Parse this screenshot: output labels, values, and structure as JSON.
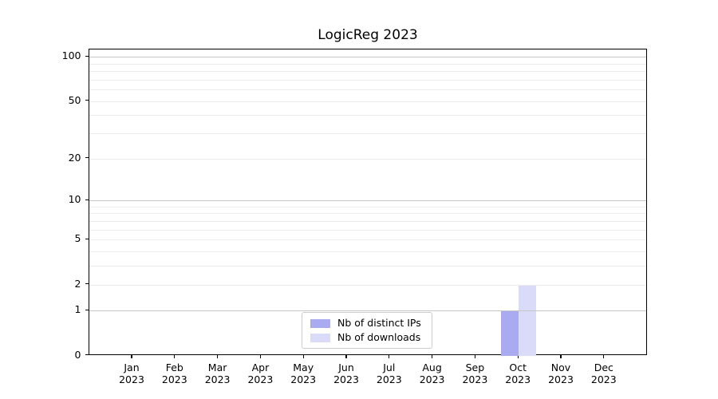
{
  "chart_data": {
    "type": "bar",
    "title": "LogicReg 2023",
    "categories": [
      "Jan",
      "Feb",
      "Mar",
      "Apr",
      "May",
      "Jun",
      "Jul",
      "Aug",
      "Sep",
      "Oct",
      "Nov",
      "Dec"
    ],
    "category_year": "2023",
    "series": [
      {
        "name": "Nb of distinct IPs",
        "color": "#a9aaf0",
        "values": [
          0,
          0,
          0,
          0,
          0,
          0,
          0,
          0,
          0,
          1,
          0,
          0
        ]
      },
      {
        "name": "Nb of downloads",
        "color": "#d9dbf8",
        "values": [
          0,
          0,
          0,
          0,
          0,
          0,
          0,
          0,
          0,
          2,
          0,
          0
        ]
      }
    ],
    "y_axis": {
      "scale": "log1p",
      "tick_values": [
        0,
        1,
        2,
        5,
        10,
        20,
        50,
        100
      ],
      "tick_labels": [
        "0",
        "1",
        "2",
        "5",
        "10",
        "20",
        "50",
        "100"
      ],
      "major_grid_values": [
        1,
        10,
        100
      ],
      "minor_grid_values": [
        2,
        3,
        4,
        5,
        6,
        7,
        8,
        9,
        20,
        30,
        40,
        50,
        60,
        70,
        80,
        90
      ],
      "ylim": [
        0,
        113
      ]
    },
    "x_axis": {
      "tick_label_lines": 2
    },
    "grid": {
      "major_color": "#c6c6c6",
      "minor_color": "#ebebeb"
    },
    "legend": {
      "position": "lower center",
      "entries": [
        "Nb of distinct IPs",
        "Nb of downloads"
      ]
    },
    "colors": {
      "spine": "#000000",
      "text": "#000000",
      "background": "#ffffff"
    }
  }
}
